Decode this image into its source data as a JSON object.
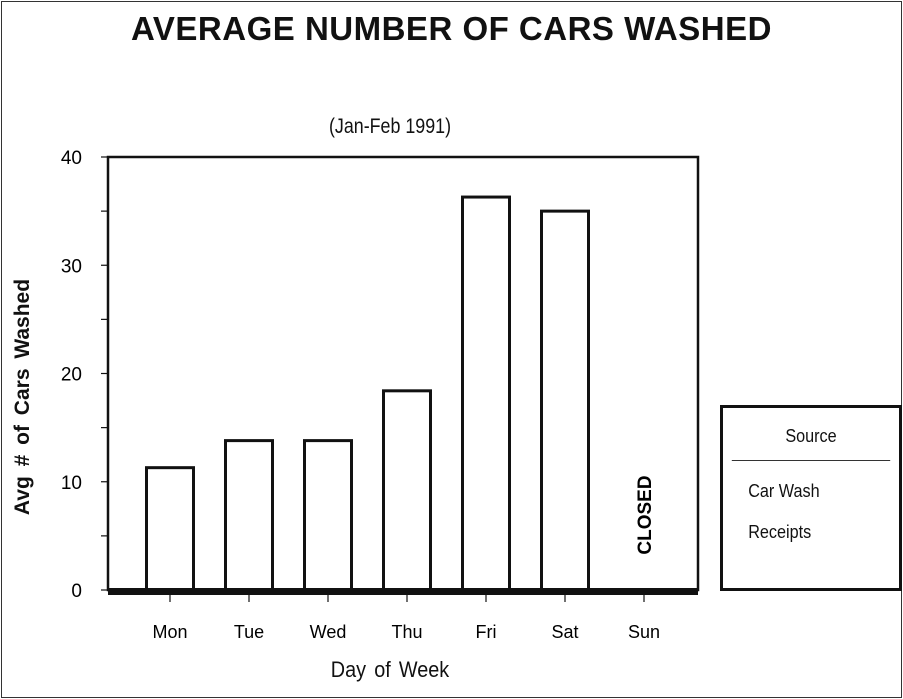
{
  "chart_data": {
    "type": "bar",
    "title": "AVERAGE NUMBER OF CARS WASHED",
    "subtitle": "(Jan-Feb  1991)",
    "xlabel": "Day of Week",
    "ylabel": "Avg  #  of  Cars  Washed",
    "categories": [
      "Mon",
      "Tue",
      "Wed",
      "Thu",
      "Fri",
      "Sat",
      "Sun"
    ],
    "values": [
      11.3,
      13.8,
      13.8,
      18.4,
      36.3,
      35.0,
      null
    ],
    "annotations": [
      {
        "category": "Sun",
        "text": "CLOSED"
      }
    ],
    "ylim": [
      0,
      40
    ],
    "yticks": [
      0,
      10,
      20,
      30,
      40
    ],
    "grid": false,
    "legend": {
      "placement": "right",
      "title": "Source",
      "lines": [
        "Car Wash",
        "Receipts"
      ]
    },
    "colors": {
      "bar_fill": "#ffffff",
      "bar_stroke": "#111111"
    }
  }
}
